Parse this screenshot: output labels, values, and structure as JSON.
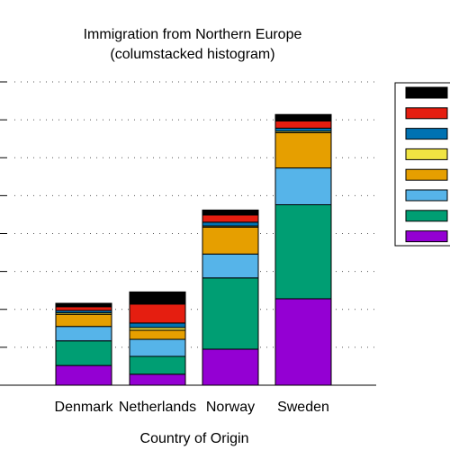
{
  "chart_data": {
    "type": "bar",
    "stacked": true,
    "title": "Immigration from Northern Europe",
    "subtitle": "(columstacked histogram)",
    "xlabel": "Country of Origin",
    "ylabel": "",
    "ylim": [
      0,
      8
    ],
    "grid": true,
    "legend_position": "right",
    "categories": [
      "Denmark",
      "Netherlands",
      "Norway",
      "Sweden"
    ],
    "series": [
      {
        "color": "#9400D3",
        "values": [
          0.52,
          0.29,
          0.95,
          2.28
        ]
      },
      {
        "color": "#009E73",
        "values": [
          0.65,
          0.47,
          1.88,
          2.48
        ]
      },
      {
        "color": "#56B4E9",
        "values": [
          0.38,
          0.45,
          0.63,
          0.97
        ]
      },
      {
        "color": "#E69F00",
        "values": [
          0.32,
          0.24,
          0.71,
          0.93
        ]
      },
      {
        "color": "#F0E442",
        "values": [
          0.04,
          0.07,
          0.03,
          0.04
        ]
      },
      {
        "color": "#0072B2",
        "values": [
          0.06,
          0.12,
          0.1,
          0.08
        ]
      },
      {
        "color": "#E51E10",
        "values": [
          0.1,
          0.5,
          0.19,
          0.19
        ]
      },
      {
        "color": "#000000",
        "values": [
          0.09,
          0.32,
          0.13,
          0.17
        ]
      }
    ]
  }
}
